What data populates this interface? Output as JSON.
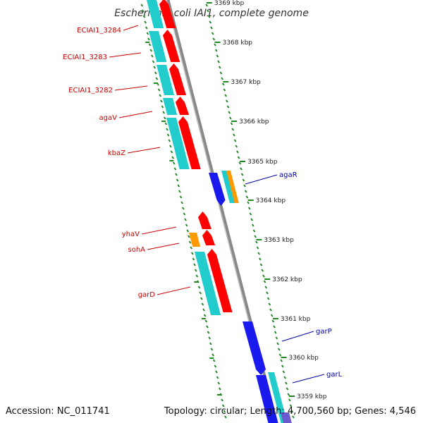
{
  "title": "Escherichia coli IAI1, complete genome",
  "footer": {
    "accession": "Accession: NC_011741",
    "summary": "Topology: circular; Length: 4,700,560 bp; Genes: 4,546"
  },
  "ticks": [
    {
      "label": "3369 kbp"
    },
    {
      "label": "3368 kbp"
    },
    {
      "label": "3367 kbp"
    },
    {
      "label": "3366 kbp"
    },
    {
      "label": "3365 kbp"
    },
    {
      "label": "3364 kbp"
    },
    {
      "label": "3363 kbp"
    },
    {
      "label": "3362 kbp"
    },
    {
      "label": "3361 kbp"
    },
    {
      "label": "3360 kbp"
    },
    {
      "label": "3359 kbp"
    }
  ],
  "genes": [
    {
      "name": "ECIAI1_3284",
      "strand": "minus",
      "color": "#cc0000"
    },
    {
      "name": "ECIAI1_3283",
      "strand": "minus",
      "color": "#cc0000"
    },
    {
      "name": "ECIAI1_3282",
      "strand": "minus",
      "color": "#cc0000"
    },
    {
      "name": "agaV",
      "strand": "minus",
      "color": "#cc0000"
    },
    {
      "name": "kbaZ",
      "strand": "minus",
      "color": "#cc0000"
    },
    {
      "name": "yhaV",
      "strand": "minus",
      "color": "#cc0000"
    },
    {
      "name": "sohA",
      "strand": "minus",
      "color": "#cc0000"
    },
    {
      "name": "garD",
      "strand": "minus",
      "color": "#cc0000"
    },
    {
      "name": "agaR",
      "strand": "plus",
      "color": "#0000aa"
    },
    {
      "name": "garP",
      "strand": "plus",
      "color": "#0000aa"
    },
    {
      "name": "garL",
      "strand": "plus",
      "color": "#0000aa"
    }
  ],
  "colors": {
    "backbone": "#888888",
    "cds_minus": "#ff0000",
    "cds_plus": "#1a1aee",
    "gene_feature": "#22cccc",
    "short_feature": "#ff9900",
    "tick_mark": "#228822"
  }
}
